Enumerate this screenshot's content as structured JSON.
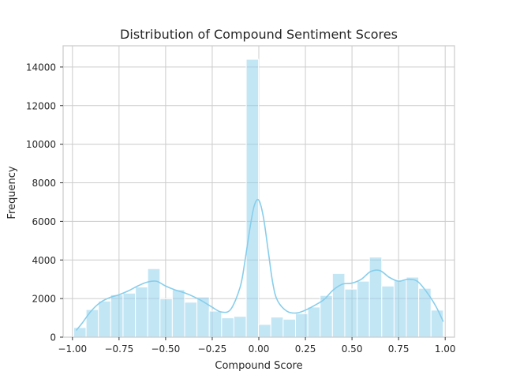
{
  "chart_data": {
    "type": "bar",
    "title": "Distribution of Compound Sentiment Scores",
    "xlabel": "Compound Score",
    "ylabel": "Frequency",
    "xlim": [
      -1.05,
      1.05
    ],
    "ylim": [
      0,
      15100
    ],
    "xticks": [
      -1.0,
      -0.75,
      -0.5,
      -0.25,
      0.0,
      0.25,
      0.5,
      0.75,
      1.0
    ],
    "xtick_labels": [
      "−1.00",
      "−0.75",
      "−0.50",
      "−0.25",
      "0.00",
      "0.25",
      "0.50",
      "0.75",
      "1.00"
    ],
    "yticks": [
      0,
      2000,
      4000,
      6000,
      8000,
      10000,
      12000,
      14000
    ],
    "ytick_labels": [
      "0",
      "2000",
      "4000",
      "6000",
      "8000",
      "10000",
      "12000",
      "14000"
    ],
    "grid": true,
    "bar_color": "#87ceeb",
    "bins": {
      "start": -0.9929,
      "width": 0.0661,
      "values": [
        500,
        1430,
        1870,
        2200,
        2280,
        2600,
        3550,
        1990,
        2460,
        1810,
        2080,
        1350,
        1000,
        1080,
        14400,
        660,
        1040,
        930,
        1220,
        1560,
        2160,
        3300,
        2490,
        2900,
        4150,
        2650,
        2960,
        3110,
        2530,
        1400
      ]
    },
    "kde": {
      "x": [
        -0.98,
        -0.95,
        -0.9,
        -0.85,
        -0.8,
        -0.75,
        -0.7,
        -0.65,
        -0.6,
        -0.55,
        -0.5,
        -0.45,
        -0.4,
        -0.35,
        -0.3,
        -0.25,
        -0.2,
        -0.15,
        -0.1,
        -0.075,
        -0.05,
        -0.025,
        0.0,
        0.025,
        0.05,
        0.075,
        0.1,
        0.15,
        0.2,
        0.25,
        0.3,
        0.35,
        0.4,
        0.45,
        0.5,
        0.55,
        0.6,
        0.65,
        0.7,
        0.75,
        0.8,
        0.85,
        0.9,
        0.95,
        0.99
      ],
      "y": [
        350,
        700,
        1350,
        1800,
        2050,
        2200,
        2400,
        2650,
        2850,
        2900,
        2650,
        2450,
        2300,
        2100,
        1850,
        1550,
        1300,
        1450,
        2600,
        3900,
        5500,
        6800,
        7100,
        6200,
        4500,
        2800,
        1900,
        1350,
        1250,
        1400,
        1650,
        1950,
        2450,
        2750,
        2800,
        3000,
        3400,
        3450,
        3100,
        2900,
        3000,
        2900,
        2350,
        1600,
        800
      ]
    }
  }
}
